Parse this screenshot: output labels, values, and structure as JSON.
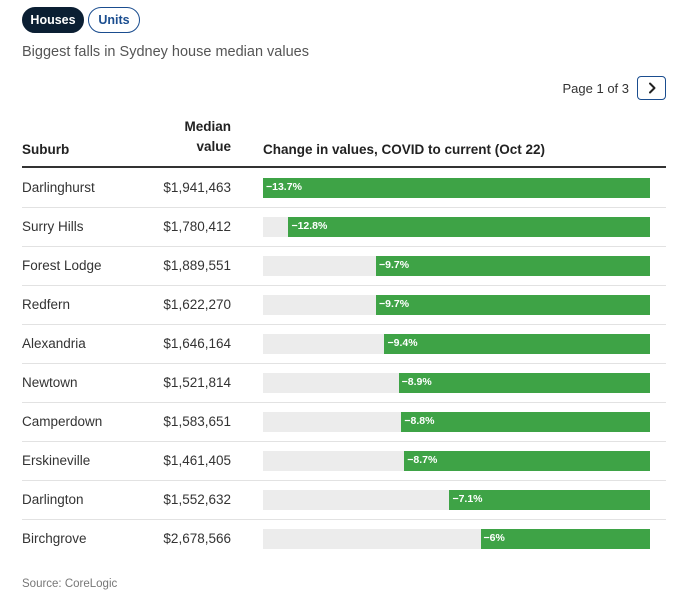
{
  "tabs": {
    "houses_label": "Houses",
    "units_label": "Units",
    "active": "Houses"
  },
  "subtitle": "Biggest falls in Sydney house median values",
  "pager": {
    "text": "Page 1 of 3",
    "next_icon": "chevron-right-icon"
  },
  "table": {
    "headers": {
      "suburb": "Suburb",
      "median_line1": "Median",
      "median_line2": "value",
      "change": "Change in values, COVID to current (Oct 22)"
    },
    "rows": [
      {
        "suburb": "Darlinghurst",
        "median": "$1,941,463",
        "change_label": "−13.7%",
        "change": -13.7
      },
      {
        "suburb": "Surry Hills",
        "median": "$1,780,412",
        "change_label": "−12.8%",
        "change": -12.8
      },
      {
        "suburb": "Forest Lodge",
        "median": "$1,889,551",
        "change_label": "−9.7%",
        "change": -9.7
      },
      {
        "suburb": "Redfern",
        "median": "$1,622,270",
        "change_label": "−9.7%",
        "change": -9.7
      },
      {
        "suburb": "Alexandria",
        "median": "$1,646,164",
        "change_label": "−9.4%",
        "change": -9.4
      },
      {
        "suburb": "Newtown",
        "median": "$1,521,814",
        "change_label": "−8.9%",
        "change": -8.9
      },
      {
        "suburb": "Camperdown",
        "median": "$1,583,651",
        "change_label": "−8.8%",
        "change": -8.8
      },
      {
        "suburb": "Erskineville",
        "median": "$1,461,405",
        "change_label": "−8.7%",
        "change": -8.7
      },
      {
        "suburb": "Darlington",
        "median": "$1,552,632",
        "change_label": "−7.1%",
        "change": -7.1
      },
      {
        "suburb": "Birchgrove",
        "median": "$2,678,566",
        "change_label": "−6%",
        "change": -6.0
      }
    ],
    "scale_max_abs": 13.7
  },
  "source": "Source: CoreLogic",
  "colors": {
    "bar_fill": "#3ea346",
    "bar_track": "#ececec",
    "tab_active_bg": "#0b1f33",
    "accent": "#1a4d8f"
  }
}
